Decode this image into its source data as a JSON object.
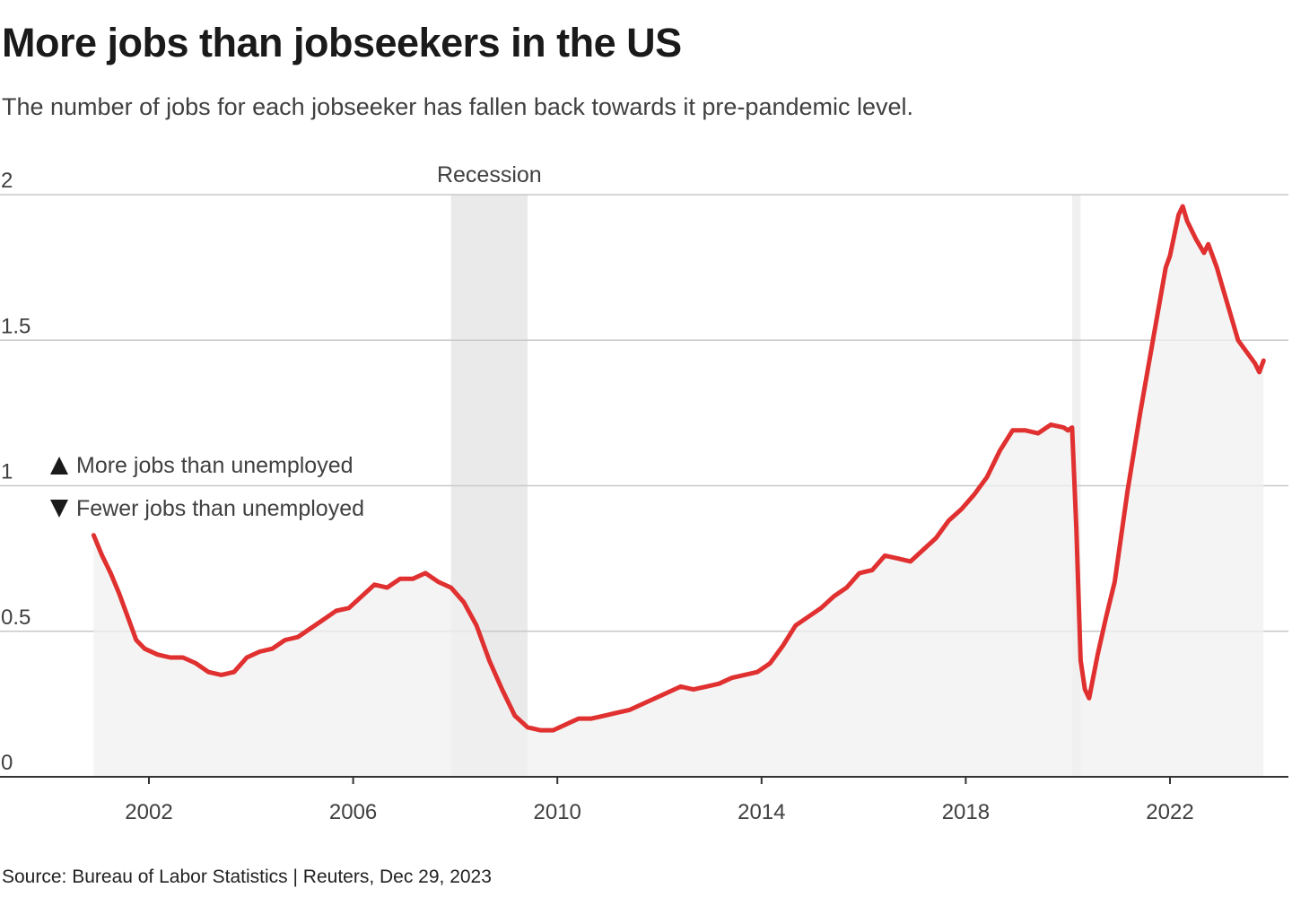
{
  "title": "More jobs than jobseekers in the US",
  "subtitle": "The number of jobs for each jobseeker has fallen back towards it pre-pandemic level.",
  "source": "Source: Bureau of Labor Statistics | Reuters, Dec 29, 2023",
  "colors": {
    "line": "#e03030",
    "area": "#f0f0f0",
    "recession": "#e6e6e6",
    "grid": "#c8c8c8",
    "axis": "#333333",
    "text": "#404040"
  },
  "legend": {
    "up_label": "More jobs than unemployed",
    "down_label": "Fewer jobs than unemployed",
    "up_icon": "triangle-up-icon",
    "down_icon": "triangle-down-icon"
  },
  "chart_data": {
    "type": "area",
    "title": "More jobs than jobseekers in the US",
    "subtitle": "The number of jobs for each jobseeker has fallen back towards it pre-pandemic level.",
    "xlabel": "",
    "ylabel": "",
    "xlim": [
      "2001-01-01",
      "2024-01-01"
    ],
    "ylim": [
      0,
      2
    ],
    "yticks": [
      0,
      0.5,
      1,
      1.5,
      2
    ],
    "ytick_labels": [
      "0",
      "0.5",
      "1",
      "1.5",
      "2"
    ],
    "xticks": [
      "2002",
      "2006",
      "2010",
      "2014",
      "2018",
      "2022"
    ],
    "grid": true,
    "recessions": [
      {
        "label": "Recession",
        "start": "2007-12-01",
        "end": "2009-06-01"
      },
      {
        "label": "",
        "start": "2020-02-01",
        "end": "2020-04-01"
      }
    ],
    "series": [
      {
        "x": [
          "2000-12-01",
          "2001-02-01",
          "2001-04-01",
          "2001-06-01",
          "2001-08-01",
          "2001-10-01",
          "2001-12-01",
          "2002-03-01",
          "2002-06-01",
          "2002-09-01",
          "2002-12-01",
          "2003-03-01",
          "2003-06-01",
          "2003-09-01",
          "2003-12-01",
          "2004-03-01",
          "2004-06-01",
          "2004-09-01",
          "2004-12-01",
          "2005-03-01",
          "2005-06-01",
          "2005-09-01",
          "2005-12-01",
          "2006-03-01",
          "2006-06-01",
          "2006-09-01",
          "2006-12-01",
          "2007-03-01",
          "2007-06-01",
          "2007-09-01",
          "2007-12-01",
          "2008-03-01",
          "2008-06-01",
          "2008-09-01",
          "2008-12-01",
          "2009-03-01",
          "2009-06-01",
          "2009-09-01",
          "2009-12-01",
          "2010-03-01",
          "2010-06-01",
          "2010-09-01",
          "2010-12-01",
          "2011-03-01",
          "2011-06-01",
          "2011-09-01",
          "2011-12-01",
          "2012-03-01",
          "2012-06-01",
          "2012-09-01",
          "2012-12-01",
          "2013-03-01",
          "2013-06-01",
          "2013-09-01",
          "2013-12-01",
          "2014-03-01",
          "2014-06-01",
          "2014-09-01",
          "2014-12-01",
          "2015-03-01",
          "2015-06-01",
          "2015-09-01",
          "2015-12-01",
          "2016-03-01",
          "2016-06-01",
          "2016-09-01",
          "2016-12-01",
          "2017-03-01",
          "2017-06-01",
          "2017-09-01",
          "2017-12-01",
          "2018-03-01",
          "2018-06-01",
          "2018-09-01",
          "2018-12-01",
          "2019-03-01",
          "2019-06-01",
          "2019-09-01",
          "2019-12-01",
          "2020-01-01",
          "2020-02-01",
          "2020-03-01",
          "2020-04-01",
          "2020-05-01",
          "2020-06-01",
          "2020-08-01",
          "2020-10-01",
          "2020-12-01",
          "2021-03-01",
          "2021-06-01",
          "2021-09-01",
          "2021-12-01",
          "2022-01-01",
          "2022-03-01",
          "2022-04-01",
          "2022-05-01",
          "2022-07-01",
          "2022-09-01",
          "2022-10-01",
          "2022-12-01",
          "2023-01-01",
          "2023-03-01",
          "2023-05-01",
          "2023-07-01",
          "2023-09-01",
          "2023-10-01",
          "2023-11-01"
        ],
        "values": [
          0.83,
          0.76,
          0.7,
          0.63,
          0.55,
          0.47,
          0.44,
          0.42,
          0.41,
          0.41,
          0.39,
          0.36,
          0.35,
          0.36,
          0.41,
          0.43,
          0.44,
          0.47,
          0.48,
          0.51,
          0.54,
          0.57,
          0.58,
          0.62,
          0.66,
          0.65,
          0.68,
          0.68,
          0.7,
          0.67,
          0.65,
          0.6,
          0.52,
          0.4,
          0.3,
          0.21,
          0.17,
          0.16,
          0.16,
          0.18,
          0.2,
          0.2,
          0.21,
          0.22,
          0.23,
          0.25,
          0.27,
          0.29,
          0.31,
          0.3,
          0.31,
          0.32,
          0.34,
          0.35,
          0.36,
          0.39,
          0.45,
          0.52,
          0.55,
          0.58,
          0.62,
          0.65,
          0.7,
          0.71,
          0.76,
          0.75,
          0.74,
          0.78,
          0.82,
          0.88,
          0.92,
          0.97,
          1.03,
          1.12,
          1.19,
          1.19,
          1.18,
          1.21,
          1.2,
          1.19,
          1.2,
          0.85,
          0.4,
          0.3,
          0.27,
          0.42,
          0.55,
          0.67,
          0.98,
          1.25,
          1.5,
          1.75,
          1.79,
          1.93,
          1.96,
          1.91,
          1.85,
          1.8,
          1.83,
          1.75,
          1.7,
          1.6,
          1.5,
          1.46,
          1.42,
          1.39,
          1.43
        ]
      }
    ]
  }
}
